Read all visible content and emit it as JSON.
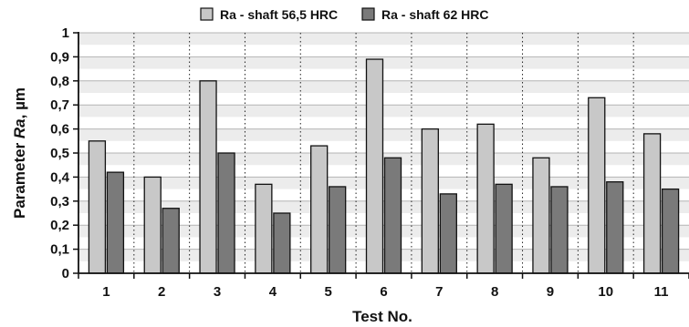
{
  "chart_data": {
    "type": "bar",
    "categories": [
      "1",
      "2",
      "3",
      "4",
      "5",
      "6",
      "7",
      "8",
      "9",
      "10",
      "11"
    ],
    "series": [
      {
        "name": "Ra - shaft 56,5 HRC",
        "color": "#c8c8c8",
        "values": [
          0.55,
          0.4,
          0.8,
          0.37,
          0.53,
          0.89,
          0.6,
          0.62,
          0.48,
          0.73,
          0.58
        ]
      },
      {
        "name": "Ra - shaft 62 HRC",
        "color": "#7a7a7a",
        "values": [
          0.42,
          0.27,
          0.5,
          0.25,
          0.36,
          0.48,
          0.33,
          0.37,
          0.36,
          0.38,
          0.35
        ]
      }
    ],
    "ylim": [
      0,
      1
    ],
    "yticks": [
      "0",
      "0,1",
      "0,2",
      "0,3",
      "0,4",
      "0,5",
      "0,6",
      "0,7",
      "0,8",
      "0,9",
      "1"
    ],
    "ylabel_prefix": "Parameter ",
    "ylabel_symbol": "Ra",
    "ylabel_suffix": ", µm",
    "xlabel": "Test No.",
    "legend_position": "top",
    "grid": "horizontal bands, dotted vertical separators",
    "colors": {
      "band": "#ececec",
      "grid_line": "#b4b4b4",
      "axis": "#111111"
    }
  }
}
